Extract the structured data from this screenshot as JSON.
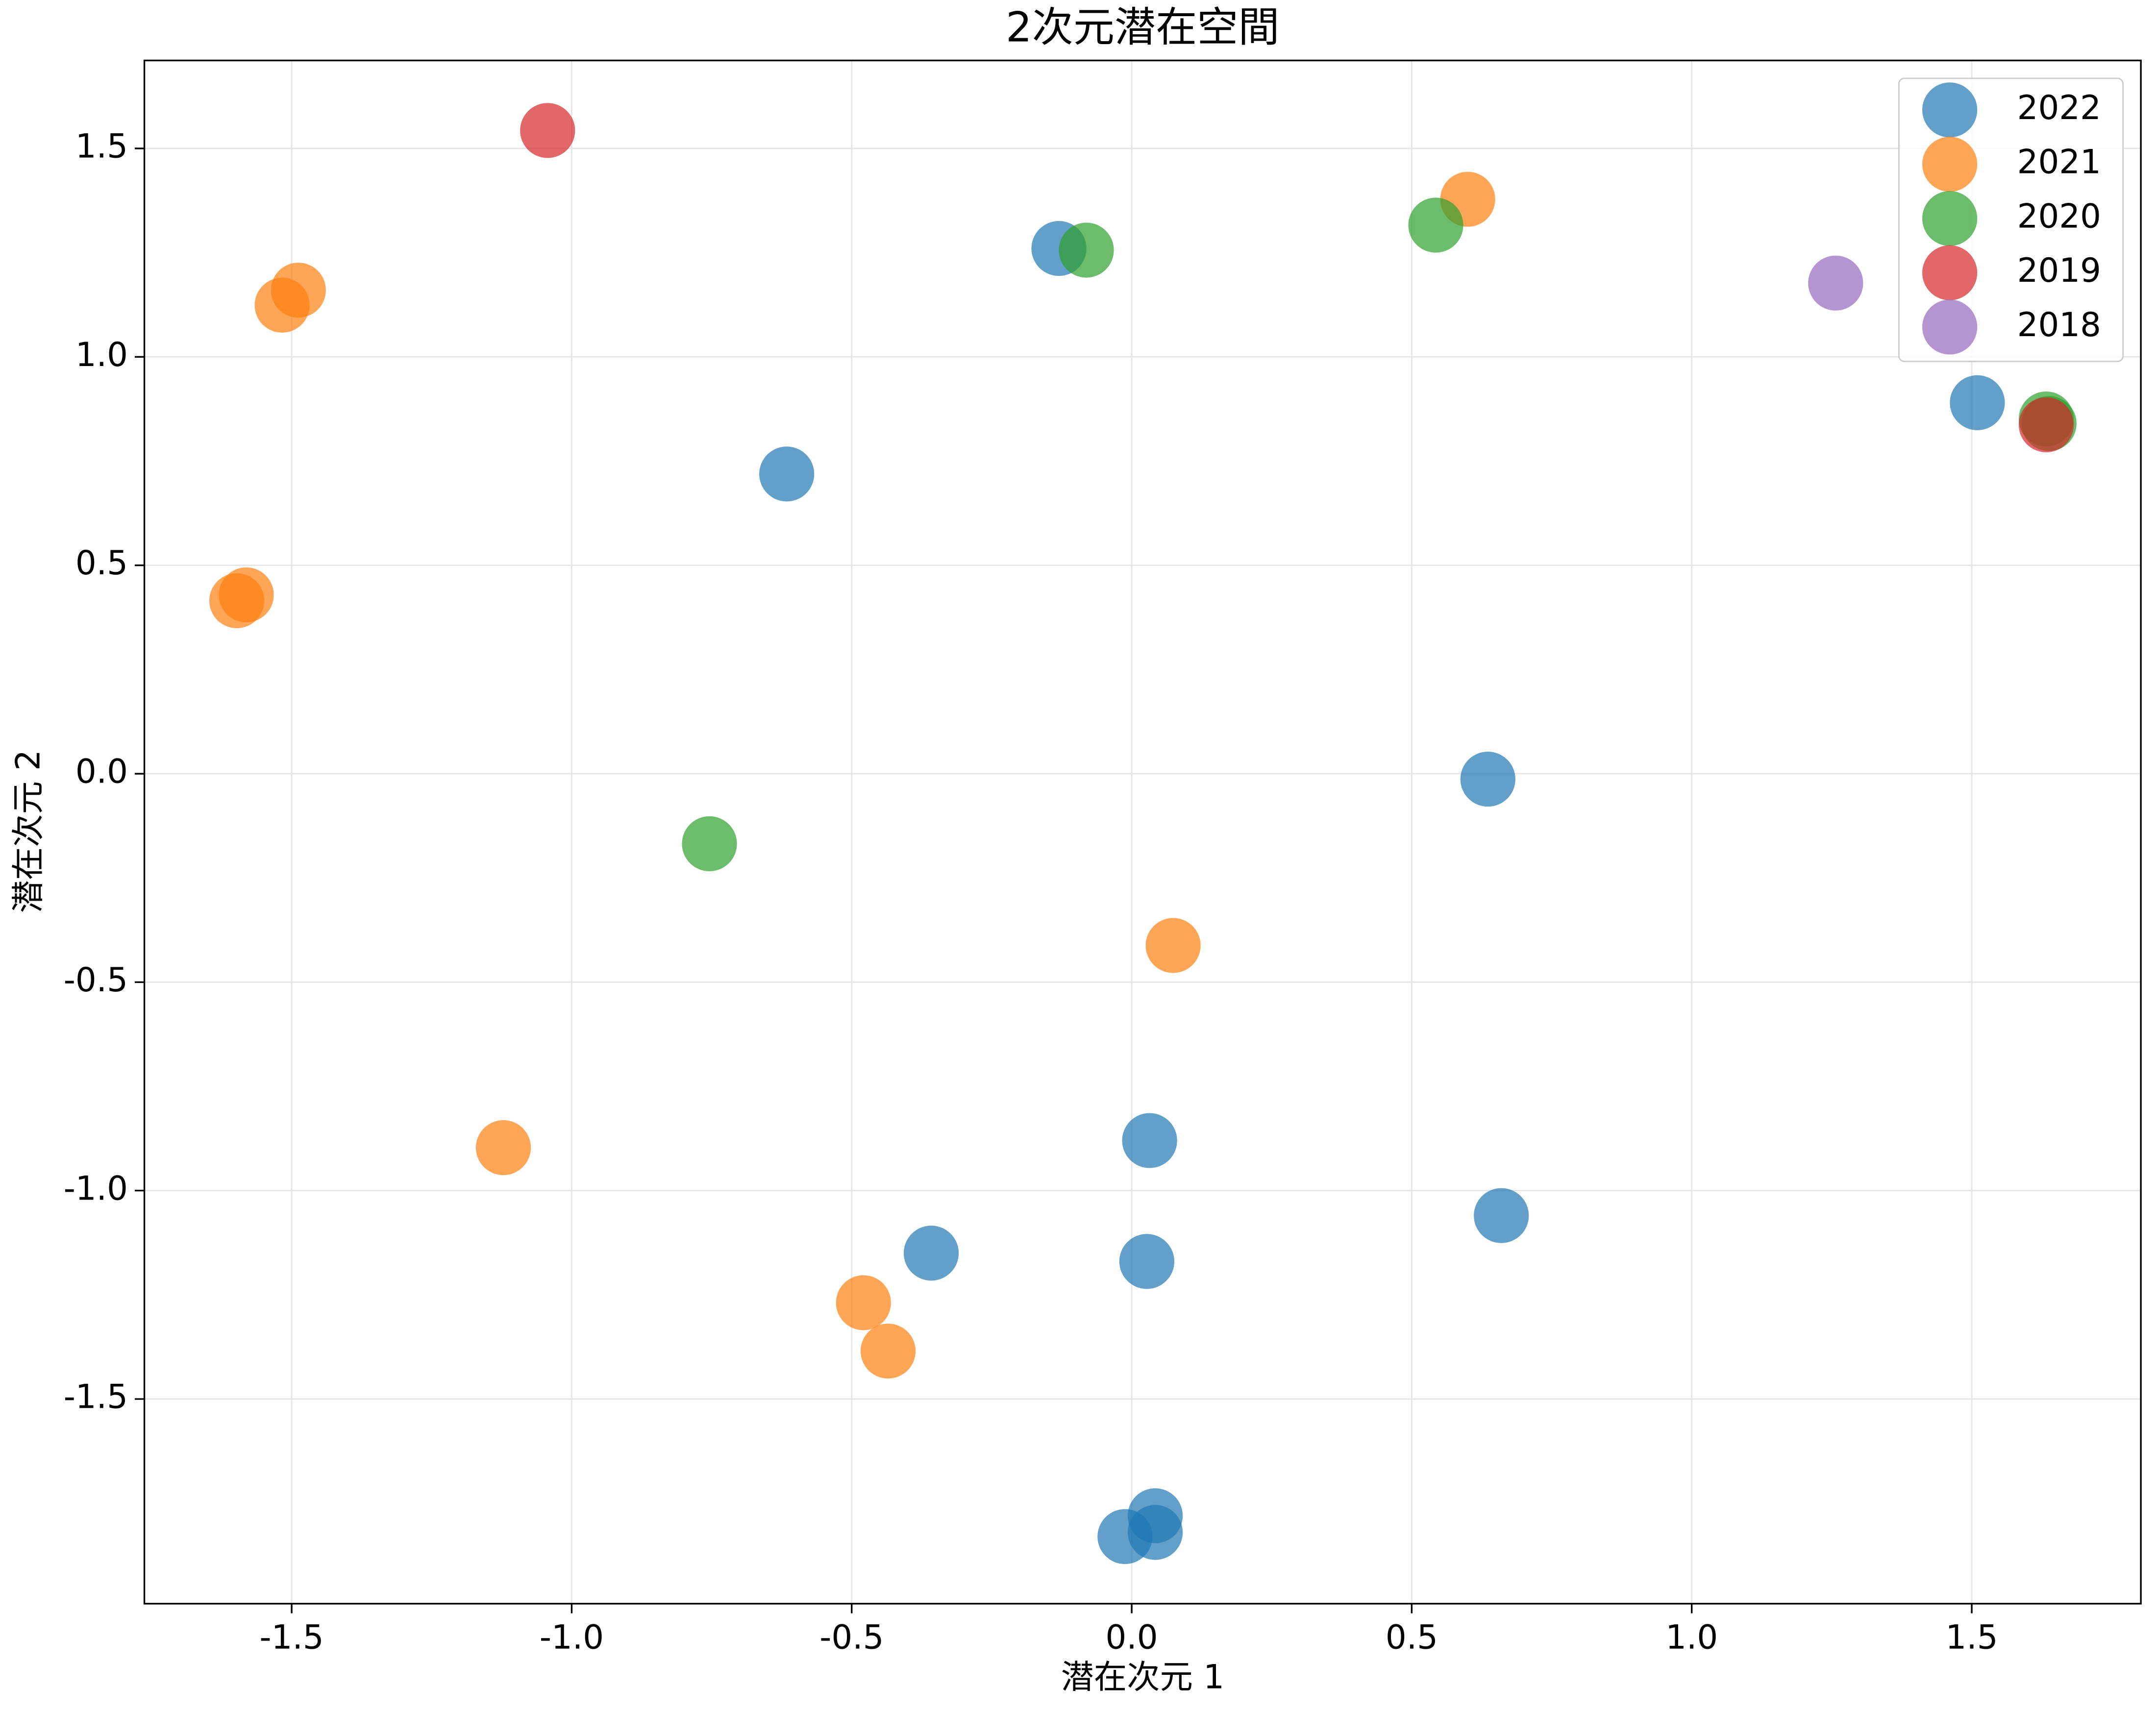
{
  "chart_data": {
    "type": "scatter",
    "title": "2次元潜在空間",
    "xlabel": "潜在次元 1",
    "ylabel": "潜在次元 2",
    "xlim": [
      -1.763,
      1.802
    ],
    "ylim": [
      -1.991,
      1.711
    ],
    "xticks": [
      -1.5,
      {
        "value": -1.0,
        "label": "-1.0"
      },
      -0.5,
      {
        "value": 0,
        "label": "0.0"
      },
      0.5,
      {
        "value": 1.0,
        "label": "1.0"
      },
      1.5
    ],
    "yticks": [
      -1.5,
      {
        "value": -1.0,
        "label": "-1.0"
      },
      -0.5,
      {
        "value": 0,
        "label": "0.0"
      },
      0.5,
      {
        "value": 1.0,
        "label": "1.0"
      },
      1.5
    ],
    "grid": true,
    "legend": "upper right",
    "series": [
      {
        "name": "2022",
        "color": "#1f77b4",
        "x": [
          -0.13,
          -0.616,
          1.51,
          0.636,
          0.032,
          0.66,
          -0.358,
          0.027,
          0.042,
          -0.012,
          0.042
        ],
        "values": [
          1.26,
          0.719,
          0.89,
          -0.013,
          -0.88,
          -1.06,
          -1.15,
          -1.17,
          -1.78,
          -1.83,
          -1.82
        ]
      },
      {
        "name": "2021",
        "color": "#ff7f0e",
        "x": [
          0.6,
          -1.488,
          -1.517,
          -1.581,
          -1.598,
          0.074,
          -1.122,
          -0.479,
          -0.435
        ],
        "values": [
          1.378,
          1.16,
          1.124,
          0.429,
          0.415,
          -0.412,
          -0.897,
          -1.269,
          -1.385
        ]
      },
      {
        "name": "2020",
        "color": "#2ca02c",
        "x": [
          -0.081,
          0.543,
          -0.754,
          1.633,
          1.638
        ],
        "values": [
          1.256,
          1.316,
          -0.168,
          0.851,
          0.84
        ]
      },
      {
        "name": "2019",
        "color": "#d62728",
        "x": [
          -1.043,
          1.633
        ],
        "values": [
          1.543,
          0.837
        ]
      },
      {
        "name": "2018",
        "color": "#9467bd",
        "x": [
          1.257
        ],
        "values": [
          1.177
        ]
      }
    ]
  }
}
